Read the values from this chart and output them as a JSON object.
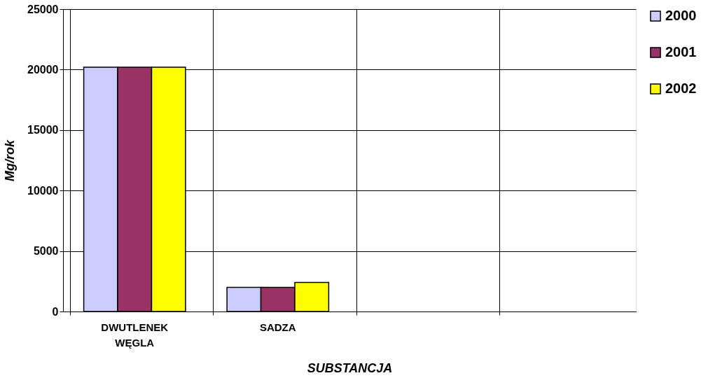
{
  "chart_data": {
    "type": "bar",
    "xlabel": "SUBSTANCJA",
    "ylabel": "Mg/rok",
    "categories": [
      "DWUTLENEK WĘGLA",
      "SADZA",
      null,
      null
    ],
    "series": [
      {
        "name": "2000",
        "color": "#ccccff",
        "values": [
          20200,
          2000,
          null,
          null
        ]
      },
      {
        "name": "2001",
        "color": "#993366",
        "values": [
          20200,
          2000,
          null,
          null
        ]
      },
      {
        "name": "2002",
        "color": "#ffff00",
        "values": [
          20200,
          2400,
          null,
          null
        ]
      }
    ],
    "ylim": [
      0,
      25000
    ],
    "yticks": [
      0,
      5000,
      10000,
      15000,
      20000,
      25000
    ],
    "grid": true,
    "legend": "right"
  }
}
